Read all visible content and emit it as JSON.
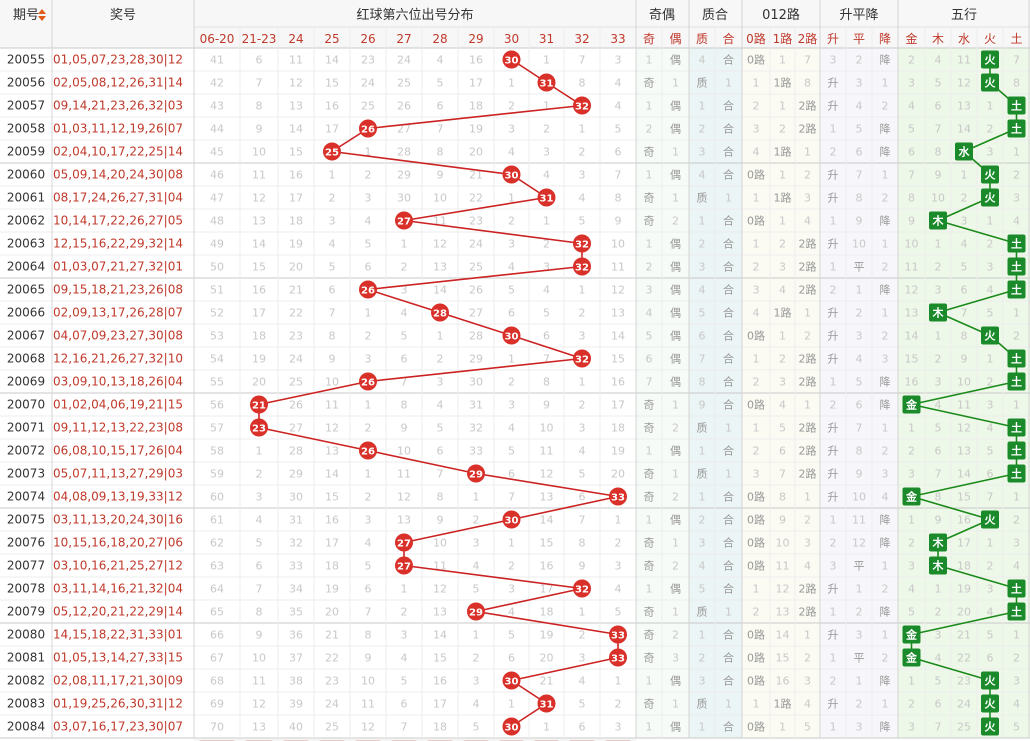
{
  "header": {
    "period_label": "期号",
    "award_label": "奖号",
    "red_dist_label": "红球第六位出号分布",
    "parity_label": "奇偶",
    "prime_label": "质合",
    "mod3_label": "012路",
    "trend_label": "升平降",
    "elements_label": "五行"
  },
  "subheaders": {
    "red": [
      "06-20",
      "21-23",
      "24",
      "25",
      "26",
      "27",
      "28",
      "29",
      "30",
      "31",
      "32",
      "33"
    ],
    "parity": [
      "奇",
      "偶"
    ],
    "prime": [
      "质",
      "合"
    ],
    "mod3": [
      "0路",
      "1路",
      "2路"
    ],
    "trend": [
      "升",
      "平",
      "降"
    ],
    "elements": [
      "金",
      "木",
      "水",
      "火",
      "土"
    ]
  },
  "colors": {
    "ball": "#d9302a",
    "line_red": "#cc2222",
    "line_green": "#1a8a1a",
    "tag_green": "#1a8a2a",
    "header_bg": "#f7f7f7",
    "border": "#e0e0e0"
  },
  "chart_data": {
    "type": "table",
    "rows": [
      {
        "period": "20055",
        "award": "01,05,07,23,28,30|12",
        "red": [
          41,
          6,
          11,
          14,
          23,
          24,
          4,
          16,
          "30",
          1,
          7,
          3
        ],
        "parity": [
          1,
          "偶"
        ],
        "prime": [
          4,
          "合"
        ],
        "mod3": [
          "0路",
          1,
          7
        ],
        "trend": [
          3,
          2,
          "降"
        ],
        "elem": [
          2,
          4,
          11,
          "火",
          7
        ]
      },
      {
        "period": "20056",
        "award": "02,05,08,12,26,31|14",
        "red": [
          42,
          7,
          12,
          15,
          24,
          25,
          5,
          17,
          1,
          "31",
          8,
          4
        ],
        "parity": [
          "奇",
          1
        ],
        "prime": [
          "质",
          1
        ],
        "mod3": [
          1,
          "1路",
          8
        ],
        "trend": [
          "升",
          3,
          1
        ],
        "elem": [
          3,
          5,
          12,
          "火",
          8
        ]
      },
      {
        "period": "20057",
        "award": "09,14,21,23,26,32|03",
        "red": [
          43,
          8,
          13,
          16,
          25,
          26,
          6,
          18,
          2,
          1,
          "32",
          4
        ],
        "parity": [
          1,
          "偶"
        ],
        "prime": [
          1,
          "合"
        ],
        "mod3": [
          2,
          1,
          "2路"
        ],
        "trend": [
          "升",
          4,
          2
        ],
        "elem": [
          4,
          6,
          13,
          1,
          "土"
        ]
      },
      {
        "period": "20058",
        "award": "01,03,11,12,19,26|07",
        "red": [
          44,
          9,
          14,
          17,
          "26",
          27,
          7,
          19,
          3,
          2,
          1,
          5
        ],
        "parity": [
          2,
          "偶"
        ],
        "prime": [
          2,
          "合"
        ],
        "mod3": [
          3,
          2,
          "2路"
        ],
        "trend": [
          1,
          5,
          "降"
        ],
        "elem": [
          5,
          7,
          14,
          2,
          "土"
        ]
      },
      {
        "period": "20059",
        "award": "02,04,10,17,22,25|14",
        "red": [
          45,
          10,
          15,
          "25",
          1,
          28,
          8,
          20,
          4,
          3,
          2,
          6
        ],
        "parity": [
          "奇",
          1
        ],
        "prime": [
          3,
          "合"
        ],
        "mod3": [
          4,
          "1路",
          1
        ],
        "trend": [
          2,
          6,
          "降"
        ],
        "elem": [
          6,
          8,
          "水",
          3,
          1
        ]
      },
      {
        "period": "20060",
        "award": "05,09,14,20,24,30|08",
        "red": [
          46,
          11,
          16,
          1,
          2,
          29,
          9,
          21,
          "30",
          4,
          3,
          7
        ],
        "parity": [
          1,
          "偶"
        ],
        "prime": [
          4,
          "合"
        ],
        "mod3": [
          "0路",
          1,
          2
        ],
        "trend": [
          "升",
          7,
          1
        ],
        "elem": [
          7,
          9,
          1,
          "火",
          2
        ]
      },
      {
        "period": "20061",
        "award": "08,17,24,26,27,31|04",
        "red": [
          47,
          12,
          17,
          2,
          3,
          30,
          10,
          22,
          1,
          "31",
          4,
          8
        ],
        "parity": [
          "奇",
          1
        ],
        "prime": [
          "质",
          1
        ],
        "mod3": [
          1,
          "1路",
          3
        ],
        "trend": [
          "升",
          8,
          2
        ],
        "elem": [
          8,
          10,
          2,
          "火",
          3
        ]
      },
      {
        "period": "20062",
        "award": "10,14,17,22,26,27|05",
        "red": [
          48,
          13,
          18,
          3,
          4,
          "27",
          11,
          23,
          2,
          1,
          5,
          9
        ],
        "parity": [
          "奇",
          2
        ],
        "prime": [
          1,
          "合"
        ],
        "mod3": [
          "0路",
          1,
          4
        ],
        "trend": [
          1,
          9,
          "降"
        ],
        "elem": [
          9,
          "木",
          3,
          1,
          4
        ]
      },
      {
        "period": "20063",
        "award": "12,15,16,22,29,32|14",
        "red": [
          49,
          14,
          19,
          4,
          5,
          1,
          12,
          24,
          3,
          2,
          "32",
          10
        ],
        "parity": [
          1,
          "偶"
        ],
        "prime": [
          2,
          "合"
        ],
        "mod3": [
          1,
          2,
          "2路"
        ],
        "trend": [
          "升",
          10,
          1
        ],
        "elem": [
          10,
          1,
          4,
          2,
          "土"
        ]
      },
      {
        "period": "20064",
        "award": "01,03,07,21,27,32|01",
        "red": [
          50,
          15,
          20,
          5,
          6,
          2,
          13,
          25,
          4,
          3,
          "32",
          11
        ],
        "parity": [
          2,
          "偶"
        ],
        "prime": [
          3,
          "合"
        ],
        "mod3": [
          2,
          3,
          "2路"
        ],
        "trend": [
          1,
          "平",
          2
        ],
        "elem": [
          11,
          2,
          5,
          3,
          "土"
        ]
      },
      {
        "period": "20065",
        "award": "09,15,18,21,23,26|08",
        "red": [
          51,
          16,
          21,
          6,
          "26",
          3,
          14,
          26,
          5,
          4,
          1,
          12
        ],
        "parity": [
          3,
          "偶"
        ],
        "prime": [
          4,
          "合"
        ],
        "mod3": [
          3,
          4,
          "2路"
        ],
        "trend": [
          2,
          1,
          "降"
        ],
        "elem": [
          12,
          3,
          6,
          4,
          "土"
        ]
      },
      {
        "period": "20066",
        "award": "02,09,13,17,26,28|07",
        "red": [
          52,
          17,
          22,
          7,
          1,
          4,
          "28",
          27,
          6,
          5,
          2,
          13
        ],
        "parity": [
          4,
          "偶"
        ],
        "prime": [
          5,
          "合"
        ],
        "mod3": [
          4,
          "1路",
          1
        ],
        "trend": [
          "升",
          2,
          1
        ],
        "elem": [
          13,
          "木",
          7,
          5,
          1
        ]
      },
      {
        "period": "20067",
        "award": "04,07,09,23,27,30|08",
        "red": [
          53,
          18,
          23,
          8,
          2,
          5,
          1,
          28,
          "30",
          6,
          3,
          14
        ],
        "parity": [
          5,
          "偶"
        ],
        "prime": [
          6,
          "合"
        ],
        "mod3": [
          "0路",
          1,
          2
        ],
        "trend": [
          "升",
          3,
          2
        ],
        "elem": [
          14,
          1,
          8,
          "火",
          2
        ]
      },
      {
        "period": "20068",
        "award": "12,16,21,26,27,32|10",
        "red": [
          54,
          19,
          24,
          9,
          3,
          6,
          2,
          29,
          1,
          7,
          "32",
          15
        ],
        "parity": [
          6,
          "偶"
        ],
        "prime": [
          7,
          "合"
        ],
        "mod3": [
          1,
          2,
          "2路"
        ],
        "trend": [
          "升",
          4,
          3
        ],
        "elem": [
          15,
          2,
          9,
          1,
          "土"
        ]
      },
      {
        "period": "20069",
        "award": "03,09,10,13,18,26|04",
        "red": [
          55,
          20,
          25,
          10,
          "26",
          7,
          3,
          30,
          2,
          8,
          1,
          16
        ],
        "parity": [
          7,
          "偶"
        ],
        "prime": [
          8,
          "合"
        ],
        "mod3": [
          2,
          3,
          "2路"
        ],
        "trend": [
          1,
          5,
          "降"
        ],
        "elem": [
          16,
          3,
          10,
          2,
          "土"
        ]
      },
      {
        "period": "20070",
        "award": "01,02,04,06,19,21|15",
        "red": [
          56,
          "21",
          26,
          11,
          1,
          8,
          4,
          31,
          3,
          9,
          2,
          17
        ],
        "parity": [
          "奇",
          1
        ],
        "prime": [
          9,
          "合"
        ],
        "mod3": [
          "0路",
          4,
          1
        ],
        "trend": [
          2,
          6,
          "降"
        ],
        "elem": [
          "金",
          4,
          11,
          3,
          1
        ]
      },
      {
        "period": "20071",
        "award": "09,11,12,13,22,23|08",
        "red": [
          57,
          "23",
          27,
          12,
          2,
          9,
          5,
          32,
          4,
          10,
          3,
          18
        ],
        "parity": [
          "奇",
          2
        ],
        "prime": [
          "质",
          1
        ],
        "mod3": [
          1,
          5,
          "2路"
        ],
        "trend": [
          "升",
          7,
          1
        ],
        "elem": [
          1,
          5,
          12,
          4,
          "土"
        ]
      },
      {
        "period": "20072",
        "award": "06,08,10,15,17,26|04",
        "red": [
          58,
          1,
          28,
          13,
          "26",
          10,
          6,
          33,
          5,
          11,
          4,
          19
        ],
        "parity": [
          1,
          "偶"
        ],
        "prime": [
          1,
          "合"
        ],
        "mod3": [
          2,
          6,
          "2路"
        ],
        "trend": [
          "升",
          8,
          2
        ],
        "elem": [
          2,
          6,
          13,
          5,
          "土"
        ]
      },
      {
        "period": "20073",
        "award": "05,07,11,13,27,29|03",
        "red": [
          59,
          2,
          29,
          14,
          1,
          11,
          7,
          "29",
          6,
          12,
          5,
          20
        ],
        "parity": [
          "奇",
          1
        ],
        "prime": [
          "质",
          1
        ],
        "mod3": [
          3,
          7,
          "2路"
        ],
        "trend": [
          "升",
          9,
          3
        ],
        "elem": [
          3,
          7,
          14,
          6,
          "土"
        ]
      },
      {
        "period": "20074",
        "award": "04,08,09,13,19,33|12",
        "red": [
          60,
          3,
          30,
          15,
          2,
          12,
          8,
          1,
          7,
          13,
          6,
          "33"
        ],
        "parity": [
          "奇",
          2
        ],
        "prime": [
          1,
          "合"
        ],
        "mod3": [
          "0路",
          8,
          1
        ],
        "trend": [
          "升",
          10,
          4
        ],
        "elem": [
          "金",
          8,
          15,
          7,
          1
        ]
      },
      {
        "period": "20075",
        "award": "03,11,13,20,24,30|16",
        "red": [
          61,
          4,
          31,
          16,
          3,
          13,
          9,
          2,
          "30",
          14,
          7,
          1
        ],
        "parity": [
          1,
          "偶"
        ],
        "prime": [
          2,
          "合"
        ],
        "mod3": [
          "0路",
          9,
          2
        ],
        "trend": [
          1,
          11,
          "降"
        ],
        "elem": [
          1,
          9,
          16,
          "火",
          2
        ]
      },
      {
        "period": "20076",
        "award": "10,15,16,18,20,27|06",
        "red": [
          62,
          5,
          32,
          17,
          4,
          "27",
          10,
          3,
          1,
          15,
          8,
          2
        ],
        "parity": [
          "奇",
          1
        ],
        "prime": [
          3,
          "合"
        ],
        "mod3": [
          "0路",
          10,
          3
        ],
        "trend": [
          2,
          12,
          "降"
        ],
        "elem": [
          2,
          "木",
          17,
          1,
          3
        ]
      },
      {
        "period": "20077",
        "award": "03,10,16,21,25,27|12",
        "red": [
          63,
          6,
          33,
          18,
          5,
          "27",
          11,
          4,
          2,
          16,
          9,
          3
        ],
        "parity": [
          "奇",
          2
        ],
        "prime": [
          4,
          "合"
        ],
        "mod3": [
          "0路",
          11,
          4
        ],
        "trend": [
          3,
          "平",
          1
        ],
        "elem": [
          3,
          "木",
          18,
          2,
          4
        ]
      },
      {
        "period": "20078",
        "award": "03,11,14,16,21,32|04",
        "red": [
          64,
          7,
          34,
          19,
          6,
          1,
          12,
          5,
          3,
          17,
          "32",
          4
        ],
        "parity": [
          1,
          "偶"
        ],
        "prime": [
          5,
          "合"
        ],
        "mod3": [
          1,
          12,
          "2路"
        ],
        "trend": [
          "升",
          1,
          2
        ],
        "elem": [
          4,
          1,
          19,
          3,
          "土"
        ]
      },
      {
        "period": "20079",
        "award": "05,12,20,21,22,29|14",
        "red": [
          65,
          8,
          35,
          20,
          7,
          2,
          13,
          "29",
          4,
          18,
          1,
          5
        ],
        "parity": [
          "奇",
          1
        ],
        "prime": [
          "质",
          1
        ],
        "mod3": [
          2,
          13,
          "2路"
        ],
        "trend": [
          1,
          2,
          "降"
        ],
        "elem": [
          5,
          2,
          20,
          4,
          "土"
        ]
      },
      {
        "period": "20080",
        "award": "14,15,18,22,31,33|01",
        "red": [
          66,
          9,
          36,
          21,
          8,
          3,
          14,
          1,
          5,
          19,
          2,
          "33"
        ],
        "parity": [
          "奇",
          2
        ],
        "prime": [
          1,
          "合"
        ],
        "mod3": [
          "0路",
          14,
          1
        ],
        "trend": [
          "升",
          3,
          1
        ],
        "elem": [
          "金",
          3,
          21,
          5,
          1
        ]
      },
      {
        "period": "20081",
        "award": "01,05,13,14,27,33|15",
        "red": [
          67,
          10,
          37,
          22,
          9,
          4,
          15,
          2,
          6,
          20,
          3,
          "33"
        ],
        "parity": [
          "奇",
          3
        ],
        "prime": [
          2,
          "合"
        ],
        "mod3": [
          "0路",
          15,
          2
        ],
        "trend": [
          1,
          "平",
          2
        ],
        "elem": [
          "金",
          4,
          22,
          6,
          2
        ]
      },
      {
        "period": "20082",
        "award": "02,08,11,17,21,30|09",
        "red": [
          68,
          11,
          38,
          23,
          10,
          5,
          16,
          3,
          "30",
          21,
          4,
          1
        ],
        "parity": [
          1,
          "偶"
        ],
        "prime": [
          3,
          "合"
        ],
        "mod3": [
          "0路",
          16,
          3
        ],
        "trend": [
          2,
          1,
          "降"
        ],
        "elem": [
          1,
          5,
          23,
          "火",
          3
        ]
      },
      {
        "period": "20083",
        "award": "01,19,25,26,30,31|12",
        "red": [
          69,
          12,
          39,
          24,
          11,
          6,
          17,
          4,
          1,
          "31",
          5,
          2
        ],
        "parity": [
          "奇",
          1
        ],
        "prime": [
          "质",
          1
        ],
        "mod3": [
          1,
          "1路",
          4
        ],
        "trend": [
          "升",
          2,
          1
        ],
        "elem": [
          2,
          6,
          24,
          "火",
          4
        ]
      },
      {
        "period": "20084",
        "award": "03,07,16,17,23,30|07",
        "red": [
          70,
          13,
          40,
          25,
          12,
          7,
          18,
          5,
          "30",
          1,
          6,
          3
        ],
        "parity": [
          1,
          "偶"
        ],
        "prime": [
          1,
          "合"
        ],
        "mod3": [
          "0路",
          1,
          5
        ],
        "trend": [
          1,
          3,
          "降"
        ],
        "elem": [
          3,
          7,
          25,
          "火",
          5
        ]
      }
    ]
  }
}
